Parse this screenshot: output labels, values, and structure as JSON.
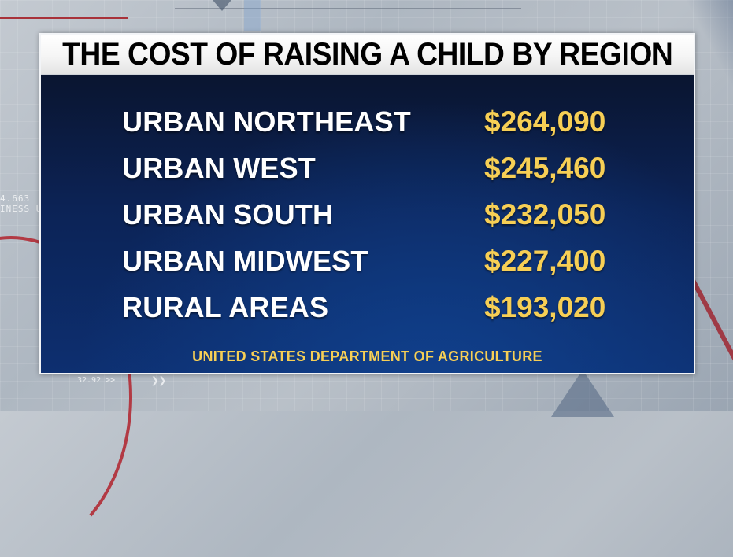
{
  "graphic": {
    "title": "THE COST OF RAISING A CHILD BY REGION",
    "rows": [
      {
        "region": "URBAN NORTHEAST",
        "cost": "$264,090"
      },
      {
        "region": "URBAN WEST",
        "cost": "$245,460"
      },
      {
        "region": "URBAN SOUTH",
        "cost": "$232,050"
      },
      {
        "region": "URBAN MIDWEST",
        "cost": "$227,400"
      },
      {
        "region": "RURAL AREAS",
        "cost": "$193,020"
      }
    ],
    "source": "UNITED STATES DEPARTMENT OF AGRICULTURE"
  },
  "background": {
    "ticker_lines": [
      "4.663",
      "INESS U"
    ],
    "ticker_small": "32.92 >>",
    "ticker_arrows": "❯❯"
  },
  "colors": {
    "title_text": "#000000",
    "title_bg": "#f5f5f5",
    "panel_bg": "#0c2356",
    "region_text": "#ffffff",
    "cost_text": "#f7cf55",
    "source_text": "#f7cf55",
    "accent_red": "#a8323a"
  }
}
